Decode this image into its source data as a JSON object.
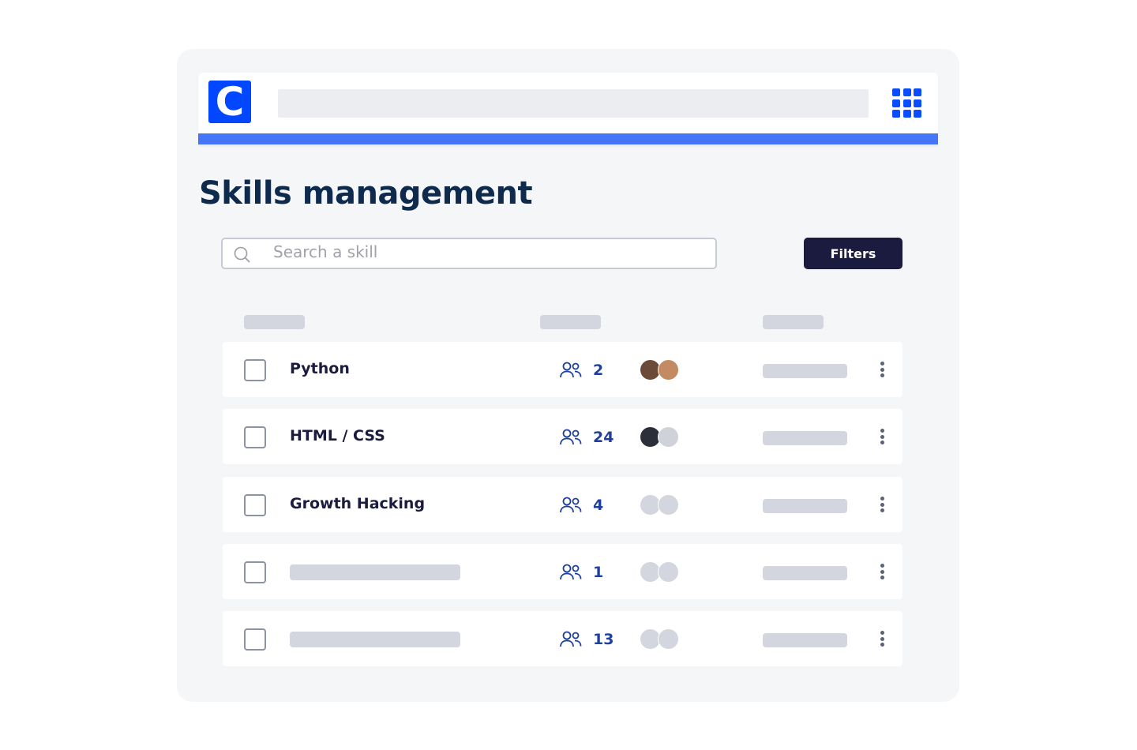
{
  "header": {
    "logo_letter": "C",
    "brand_color": "#0047ff",
    "accent_bar_color": "#4676f8",
    "apps_icon": "grid-icon"
  },
  "page_title": "Skills management",
  "search": {
    "placeholder": "Search a skill",
    "icon": "search-icon"
  },
  "filters_label": "Filters",
  "rows": [
    {
      "name": "Python",
      "count": "2",
      "avatars": "photo"
    },
    {
      "name": "HTML / CSS",
      "count": "24",
      "avatars": "photo"
    },
    {
      "name": "Growth Hacking",
      "count": "4",
      "avatars": "placeholder"
    },
    {
      "name": null,
      "count": "1",
      "avatars": "placeholder"
    },
    {
      "name": null,
      "count": "13",
      "avatars": "placeholder"
    }
  ]
}
